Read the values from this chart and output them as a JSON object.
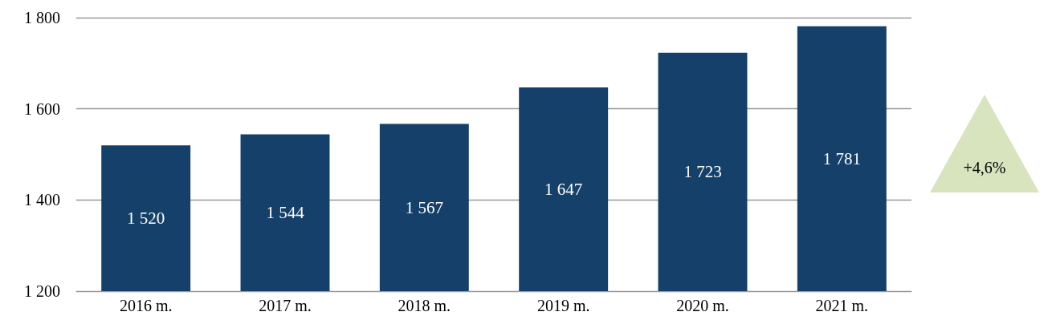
{
  "chart_data": {
    "type": "bar",
    "categories": [
      "2016 m.",
      "2017 m.",
      "2018 m.",
      "2019 m.",
      "2020 m.",
      "2021 m."
    ],
    "values": [
      1520,
      1544,
      1567,
      1647,
      1723,
      1781
    ],
    "value_labels": [
      "1 520",
      "1 544",
      "1 567",
      "1 647",
      "1 723",
      "1 781"
    ],
    "color": "#15406a",
    "ylim": [
      1200,
      1800
    ],
    "yticks": [
      {
        "value": 1200,
        "label": "1 200"
      },
      {
        "value": 1400,
        "label": "1 400"
      },
      {
        "value": 1600,
        "label": "1 600"
      },
      {
        "value": 1800,
        "label": "1 800"
      }
    ],
    "grid": "y",
    "annotations": [
      "+4,6%"
    ]
  }
}
